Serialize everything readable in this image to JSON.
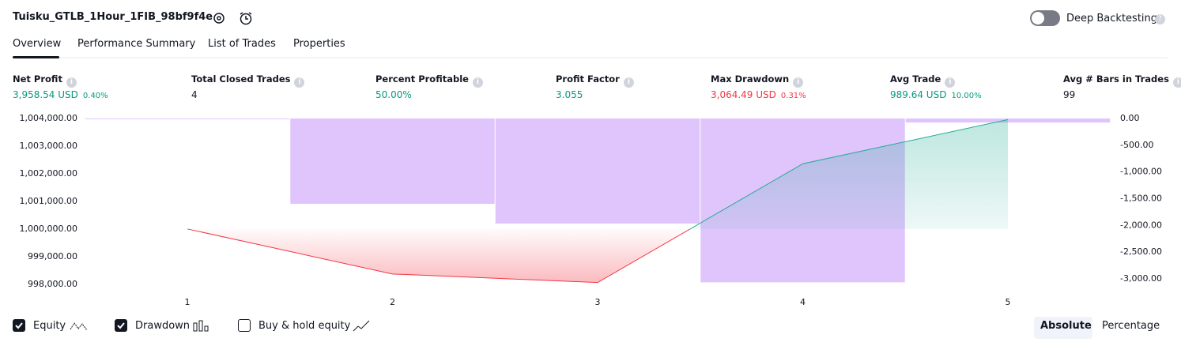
{
  "header": {
    "title": "Tuisku_GTLB_1Hour_1FIB_98bf9f4e",
    "toggle": "Deep Backtesting"
  },
  "tabs": [
    "Overview",
    "Performance Summary",
    "List of Trades",
    "Properties"
  ],
  "metrics": [
    {
      "label": "Net Profit",
      "value": "3,958.54 USD",
      "percent": "0.40%",
      "tone": "positive"
    },
    {
      "label": "Total Closed Trades",
      "value": "4",
      "tone": "neutral"
    },
    {
      "label": "Percent Profitable",
      "value": "50.00%",
      "tone": "positive"
    },
    {
      "label": "Profit Factor",
      "value": "3.055",
      "tone": "positive"
    },
    {
      "label": "Max Drawdown",
      "value": "3,064.49 USD",
      "percent": "0.31%",
      "tone": "negative"
    },
    {
      "label": "Avg Trade",
      "value": "989.64 USD",
      "percent": "10.00%",
      "tone": "positive"
    },
    {
      "label": "Avg # Bars in Trades",
      "value": "99",
      "tone": "neutral"
    }
  ],
  "chart_data": {
    "type": "line",
    "categories": [
      "1",
      "2",
      "3",
      "4",
      "5"
    ],
    "series": [
      {
        "name": "Drawdown",
        "type": "bar",
        "axis": "y2",
        "color": "#e0c5fd",
        "values": [
          0,
          -1596,
          -1966,
          -3064.49,
          -75
        ]
      },
      {
        "name": "Equity",
        "type": "line",
        "axis": "y",
        "color": "#22ab94",
        "negative_color": "#f23645",
        "values": [
          1000000,
          998370,
          998060,
          1002360,
          1003958.54
        ]
      }
    ],
    "ylim": [
      997993,
      1004056
    ],
    "yticks": [
      {
        "value": 998000,
        "label": "998,000.00"
      },
      {
        "value": 999000,
        "label": "999,000.00"
      },
      {
        "value": 1000000,
        "label": "1,000,000.00"
      },
      {
        "value": 1001000,
        "label": "1,001,000.00"
      },
      {
        "value": 1002000,
        "label": "1,002,000.00"
      },
      {
        "value": 1003000,
        "label": "1,003,000.00"
      },
      {
        "value": 1004000,
        "label": "1,004,000.00"
      }
    ],
    "y2lim": [
      -3103,
      30
    ],
    "y2ticks": [
      {
        "value": 0,
        "label": "0.00"
      },
      {
        "value": -500,
        "label": "-500.00"
      },
      {
        "value": -1000,
        "label": "-1,000.00"
      },
      {
        "value": -1500,
        "label": "-1,500.00"
      },
      {
        "value": -2000,
        "label": "-2,000.00"
      },
      {
        "value": -2500,
        "label": "-2,500.00"
      },
      {
        "value": -3000,
        "label": "-3,000.00"
      }
    ]
  },
  "footer": {
    "buy_hold": "Buy & hold equity",
    "modes": [
      "Absolute",
      "Percentage"
    ]
  }
}
